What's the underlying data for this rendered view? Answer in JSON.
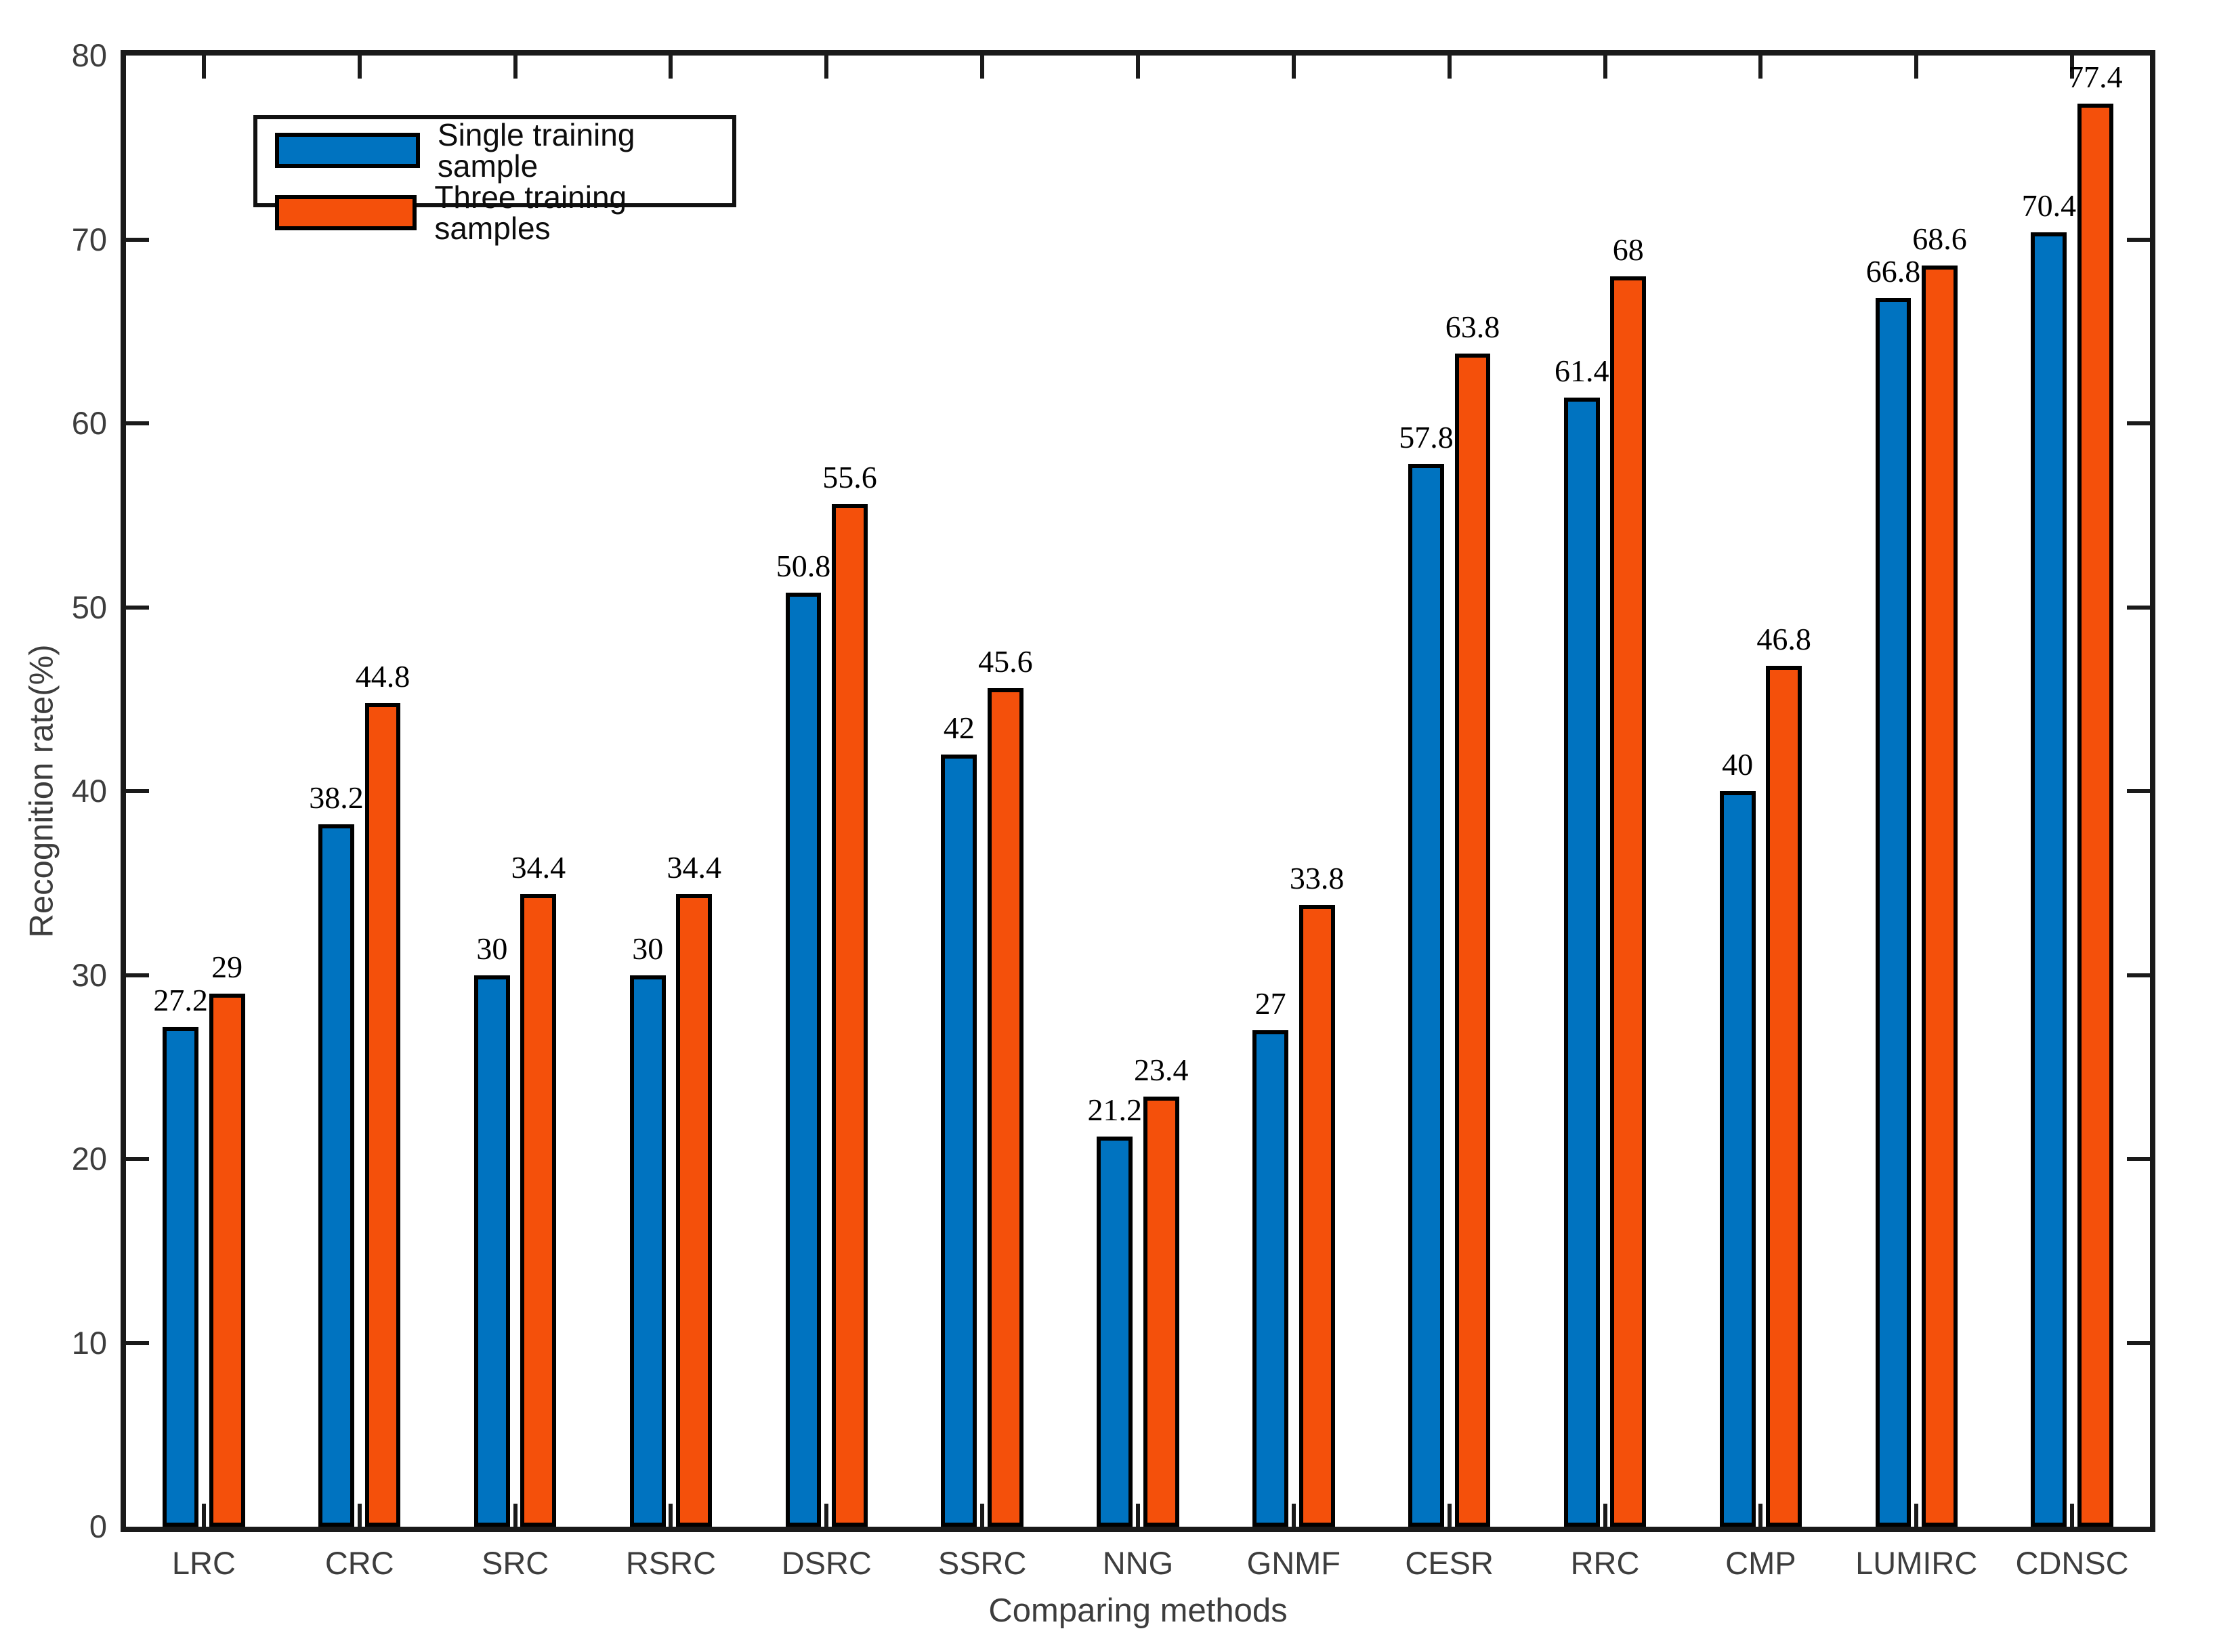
{
  "chart_data": {
    "type": "bar",
    "title": "",
    "xlabel": "Comparing methods",
    "ylabel": "Recognition rate(%)",
    "ylim": [
      0,
      80
    ],
    "ytick_step": 10,
    "yticks": [
      "0",
      "10",
      "20",
      "30",
      "40",
      "50",
      "60",
      "70",
      "80"
    ],
    "grid": false,
    "box": true,
    "tick_direction": "in",
    "legend_position": "top-left",
    "categories": [
      "LRC",
      "CRC",
      "SRC",
      "RSRC",
      "DSRC",
      "SSRC",
      "NNG",
      "GNMF",
      "CESR",
      "RRC",
      "CMP",
      "LUMIRC",
      "CDNSC"
    ],
    "series": [
      {
        "name": "Single training sample",
        "color": "#0073C0",
        "edge_color": "#000000",
        "values": [
          27.2,
          38.2,
          30,
          30,
          50.8,
          42,
          21.2,
          27,
          57.8,
          61.4,
          40,
          66.8,
          70.4
        ],
        "labels": [
          "27.2",
          "38.2",
          "30",
          "30",
          "50.8",
          "42",
          "21.2",
          "27",
          "57.8",
          "61.4",
          "40",
          "66.8",
          "70.4"
        ]
      },
      {
        "name": "Three training samples",
        "color": "#F4500B",
        "edge_color": "#000000",
        "values": [
          29,
          44.8,
          34.4,
          34.4,
          55.6,
          45.6,
          23.4,
          33.8,
          63.8,
          68,
          46.8,
          68.6,
          77.4
        ],
        "labels": [
          "29",
          "44.8",
          "34.4",
          "34.4",
          "55.6",
          "45.6",
          "23.4",
          "33.8",
          "63.8",
          "68",
          "46.8",
          "68.6",
          "77.4"
        ]
      }
    ]
  },
  "axis": {
    "line_color": "#1a1a1a",
    "tick_label_color": "#3d3d3d",
    "value_label_color": "#000000"
  }
}
